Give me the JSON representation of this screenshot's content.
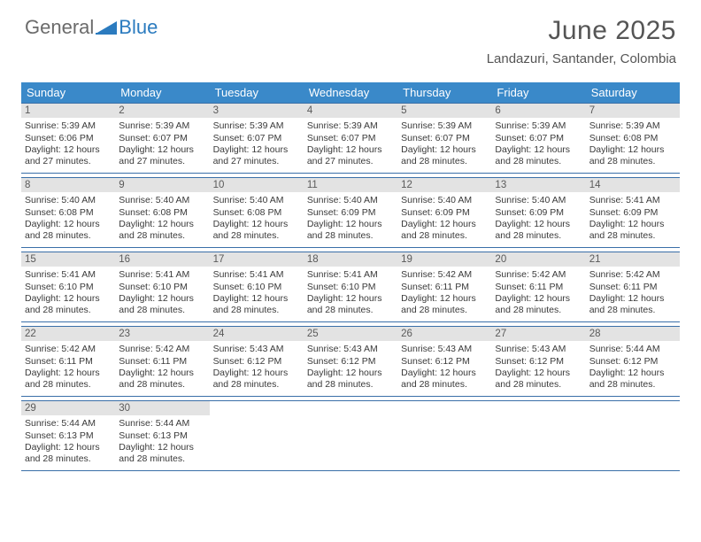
{
  "logo": {
    "text_gray": "General",
    "text_blue": "Blue",
    "gray_color": "#6b6b6b",
    "blue_color": "#2b7bbf"
  },
  "header": {
    "month_title": "June 2025",
    "location": "Landazuri, Santander, Colombia",
    "title_color": "#555555",
    "title_fontsize": 30,
    "location_fontsize": 15
  },
  "calendar": {
    "header_bg": "#3a89c9",
    "header_fg": "#ffffff",
    "rule_color": "#3a6fa8",
    "daynum_bg": "#e3e3e3",
    "daynum_fg": "#5a5a5a",
    "body_fg": "#3a3a3a",
    "dow": [
      "Sunday",
      "Monday",
      "Tuesday",
      "Wednesday",
      "Thursday",
      "Friday",
      "Saturday"
    ],
    "weeks": [
      [
        {
          "n": "1",
          "lines": [
            "Sunrise: 5:39 AM",
            "Sunset: 6:06 PM",
            "Daylight: 12 hours",
            "and 27 minutes."
          ]
        },
        {
          "n": "2",
          "lines": [
            "Sunrise: 5:39 AM",
            "Sunset: 6:07 PM",
            "Daylight: 12 hours",
            "and 27 minutes."
          ]
        },
        {
          "n": "3",
          "lines": [
            "Sunrise: 5:39 AM",
            "Sunset: 6:07 PM",
            "Daylight: 12 hours",
            "and 27 minutes."
          ]
        },
        {
          "n": "4",
          "lines": [
            "Sunrise: 5:39 AM",
            "Sunset: 6:07 PM",
            "Daylight: 12 hours",
            "and 27 minutes."
          ]
        },
        {
          "n": "5",
          "lines": [
            "Sunrise: 5:39 AM",
            "Sunset: 6:07 PM",
            "Daylight: 12 hours",
            "and 28 minutes."
          ]
        },
        {
          "n": "6",
          "lines": [
            "Sunrise: 5:39 AM",
            "Sunset: 6:07 PM",
            "Daylight: 12 hours",
            "and 28 minutes."
          ]
        },
        {
          "n": "7",
          "lines": [
            "Sunrise: 5:39 AM",
            "Sunset: 6:08 PM",
            "Daylight: 12 hours",
            "and 28 minutes."
          ]
        }
      ],
      [
        {
          "n": "8",
          "lines": [
            "Sunrise: 5:40 AM",
            "Sunset: 6:08 PM",
            "Daylight: 12 hours",
            "and 28 minutes."
          ]
        },
        {
          "n": "9",
          "lines": [
            "Sunrise: 5:40 AM",
            "Sunset: 6:08 PM",
            "Daylight: 12 hours",
            "and 28 minutes."
          ]
        },
        {
          "n": "10",
          "lines": [
            "Sunrise: 5:40 AM",
            "Sunset: 6:08 PM",
            "Daylight: 12 hours",
            "and 28 minutes."
          ]
        },
        {
          "n": "11",
          "lines": [
            "Sunrise: 5:40 AM",
            "Sunset: 6:09 PM",
            "Daylight: 12 hours",
            "and 28 minutes."
          ]
        },
        {
          "n": "12",
          "lines": [
            "Sunrise: 5:40 AM",
            "Sunset: 6:09 PM",
            "Daylight: 12 hours",
            "and 28 minutes."
          ]
        },
        {
          "n": "13",
          "lines": [
            "Sunrise: 5:40 AM",
            "Sunset: 6:09 PM",
            "Daylight: 12 hours",
            "and 28 minutes."
          ]
        },
        {
          "n": "14",
          "lines": [
            "Sunrise: 5:41 AM",
            "Sunset: 6:09 PM",
            "Daylight: 12 hours",
            "and 28 minutes."
          ]
        }
      ],
      [
        {
          "n": "15",
          "lines": [
            "Sunrise: 5:41 AM",
            "Sunset: 6:10 PM",
            "Daylight: 12 hours",
            "and 28 minutes."
          ]
        },
        {
          "n": "16",
          "lines": [
            "Sunrise: 5:41 AM",
            "Sunset: 6:10 PM",
            "Daylight: 12 hours",
            "and 28 minutes."
          ]
        },
        {
          "n": "17",
          "lines": [
            "Sunrise: 5:41 AM",
            "Sunset: 6:10 PM",
            "Daylight: 12 hours",
            "and 28 minutes."
          ]
        },
        {
          "n": "18",
          "lines": [
            "Sunrise: 5:41 AM",
            "Sunset: 6:10 PM",
            "Daylight: 12 hours",
            "and 28 minutes."
          ]
        },
        {
          "n": "19",
          "lines": [
            "Sunrise: 5:42 AM",
            "Sunset: 6:11 PM",
            "Daylight: 12 hours",
            "and 28 minutes."
          ]
        },
        {
          "n": "20",
          "lines": [
            "Sunrise: 5:42 AM",
            "Sunset: 6:11 PM",
            "Daylight: 12 hours",
            "and 28 minutes."
          ]
        },
        {
          "n": "21",
          "lines": [
            "Sunrise: 5:42 AM",
            "Sunset: 6:11 PM",
            "Daylight: 12 hours",
            "and 28 minutes."
          ]
        }
      ],
      [
        {
          "n": "22",
          "lines": [
            "Sunrise: 5:42 AM",
            "Sunset: 6:11 PM",
            "Daylight: 12 hours",
            "and 28 minutes."
          ]
        },
        {
          "n": "23",
          "lines": [
            "Sunrise: 5:42 AM",
            "Sunset: 6:11 PM",
            "Daylight: 12 hours",
            "and 28 minutes."
          ]
        },
        {
          "n": "24",
          "lines": [
            "Sunrise: 5:43 AM",
            "Sunset: 6:12 PM",
            "Daylight: 12 hours",
            "and 28 minutes."
          ]
        },
        {
          "n": "25",
          "lines": [
            "Sunrise: 5:43 AM",
            "Sunset: 6:12 PM",
            "Daylight: 12 hours",
            "and 28 minutes."
          ]
        },
        {
          "n": "26",
          "lines": [
            "Sunrise: 5:43 AM",
            "Sunset: 6:12 PM",
            "Daylight: 12 hours",
            "and 28 minutes."
          ]
        },
        {
          "n": "27",
          "lines": [
            "Sunrise: 5:43 AM",
            "Sunset: 6:12 PM",
            "Daylight: 12 hours",
            "and 28 minutes."
          ]
        },
        {
          "n": "28",
          "lines": [
            "Sunrise: 5:44 AM",
            "Sunset: 6:12 PM",
            "Daylight: 12 hours",
            "and 28 minutes."
          ]
        }
      ],
      [
        {
          "n": "29",
          "lines": [
            "Sunrise: 5:44 AM",
            "Sunset: 6:13 PM",
            "Daylight: 12 hours",
            "and 28 minutes."
          ]
        },
        {
          "n": "30",
          "lines": [
            "Sunrise: 5:44 AM",
            "Sunset: 6:13 PM",
            "Daylight: 12 hours",
            "and 28 minutes."
          ]
        },
        null,
        null,
        null,
        null,
        null
      ]
    ]
  }
}
